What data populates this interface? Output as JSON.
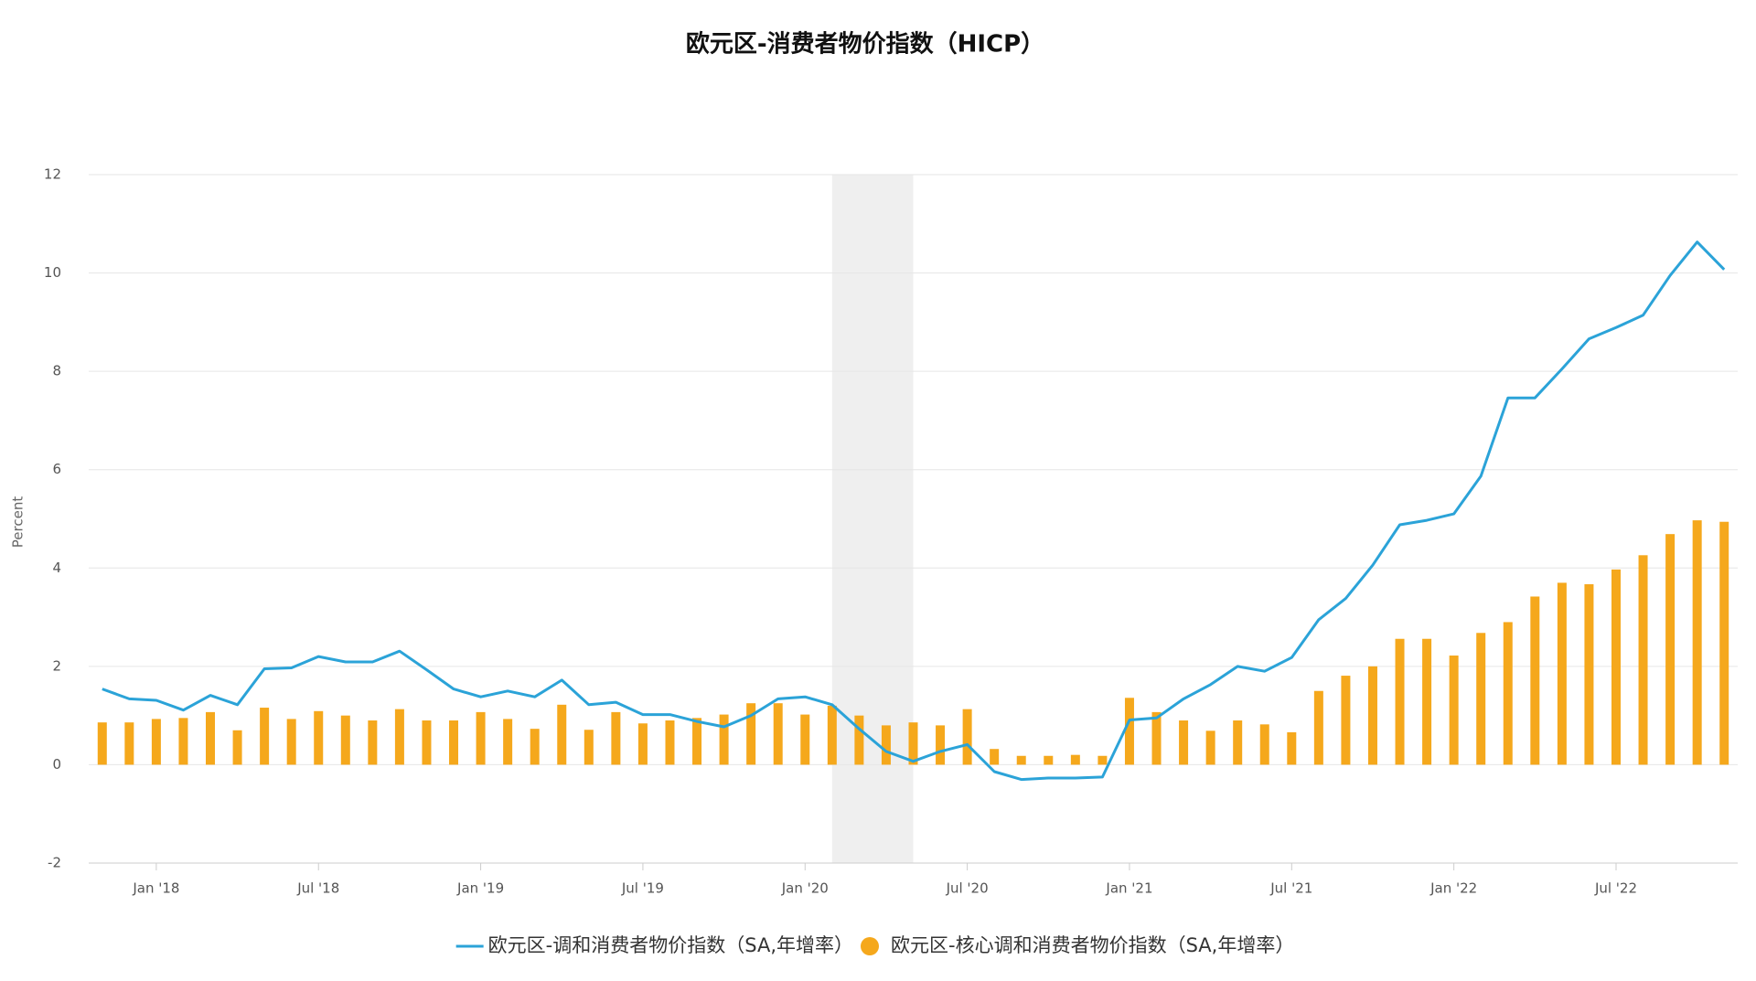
{
  "chart_data": {
    "type": "combo",
    "title": "欧元区-消费者物价指数（HICP）",
    "y_label": "Percent",
    "categories": [
      null,
      null,
      "Jan '18",
      null,
      null,
      null,
      null,
      null,
      "Jul '18",
      null,
      null,
      null,
      null,
      null,
      "Jan '19",
      null,
      null,
      null,
      null,
      null,
      "Jul '19",
      null,
      null,
      null,
      null,
      null,
      "Jan '20",
      null,
      null,
      null,
      null,
      null,
      "Jul '20",
      null,
      null,
      null,
      null,
      null,
      "Jan '21",
      null,
      null,
      null,
      null,
      null,
      "Jul '21",
      null,
      null,
      null,
      null,
      null,
      "Jan '22",
      null,
      null,
      null,
      null,
      null,
      "Jul '22",
      null,
      null,
      null,
      null
    ],
    "series": [
      {
        "name": "欧元区-调和消费者物价指数（SA,年增率）",
        "type": "line",
        "color": "#2ba3d8",
        "values": [
          1.54,
          1.34,
          1.31,
          1.11,
          1.41,
          1.22,
          1.95,
          1.97,
          2.2,
          2.09,
          2.09,
          2.31,
          1.93,
          1.54,
          1.38,
          1.5,
          1.38,
          1.72,
          1.22,
          1.27,
          1.02,
          1.02,
          0.88,
          0.77,
          1.0,
          1.34,
          1.38,
          1.22,
          0.73,
          0.27,
          0.07,
          0.27,
          0.41,
          -0.14,
          -0.3,
          -0.27,
          -0.27,
          -0.25,
          0.91,
          0.95,
          1.34,
          1.63,
          2.0,
          1.9,
          2.18,
          2.95,
          3.38,
          4.06,
          4.88,
          4.97,
          5.1,
          5.87,
          7.46,
          7.46,
          8.05,
          8.66,
          8.89,
          9.14,
          9.95,
          10.63,
          10.07
        ]
      },
      {
        "name": "欧元区-核心调和消费者物价指数（SA,年增率）",
        "type": "bar",
        "color": "#f5a81c",
        "values": [
          0.86,
          0.86,
          0.93,
          0.95,
          1.07,
          0.7,
          1.16,
          0.93,
          1.09,
          1.0,
          0.9,
          1.13,
          0.9,
          0.9,
          1.07,
          0.93,
          0.73,
          1.22,
          0.71,
          1.07,
          0.84,
          0.9,
          0.95,
          1.02,
          1.25,
          1.25,
          1.02,
          1.2,
          1.0,
          0.8,
          0.86,
          0.8,
          1.13,
          0.32,
          0.18,
          0.18,
          0.2,
          0.18,
          1.36,
          1.07,
          0.9,
          0.69,
          0.9,
          0.82,
          0.66,
          1.5,
          1.81,
          2.0,
          2.56,
          2.56,
          2.22,
          2.68,
          2.9,
          3.42,
          3.7,
          3.67,
          3.97,
          4.26,
          4.69,
          4.97,
          4.94
        ]
      }
    ],
    "shaded_range": [
      27,
      30
    ],
    "ylim": [
      -2,
      12
    ],
    "yticks": [
      -2,
      0,
      2,
      4,
      6,
      8,
      10,
      12
    ],
    "grid": true
  }
}
